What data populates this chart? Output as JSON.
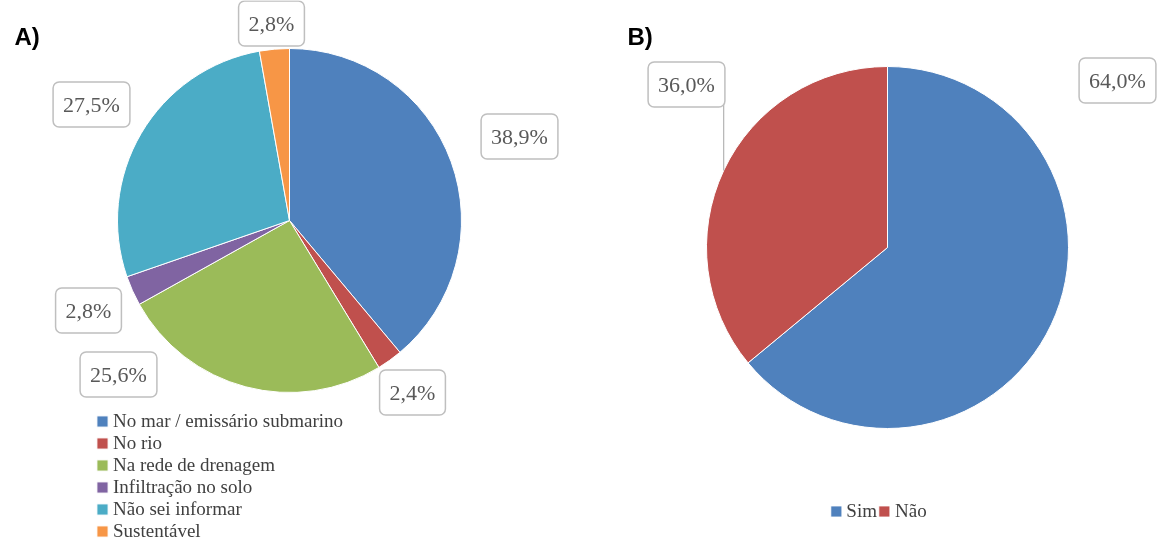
{
  "chart_data": [
    {
      "type": "pie",
      "title": "A)",
      "categories": [
        "No mar / emissário submarino",
        "No rio",
        "Na rede de drenagem",
        "Infiltração no solo",
        "Não sei informar",
        "Sustentável"
      ],
      "values": [
        38.9,
        2.4,
        25.6,
        2.8,
        27.5,
        2.8
      ],
      "colors": [
        "#4f81bd",
        "#c0504d",
        "#9bbb59",
        "#8064a2",
        "#4bacc6",
        "#f79646"
      ],
      "value_labels": [
        "38,9%",
        "2,4%",
        "25,6%",
        "2,8%",
        "27,5%",
        "2,8%"
      ],
      "legend": "bottom"
    },
    {
      "type": "pie",
      "title": "B)",
      "categories": [
        "Sim",
        "Não"
      ],
      "values": [
        64.0,
        36.0
      ],
      "colors": [
        "#4f81bd",
        "#c0504d"
      ],
      "value_labels": [
        "64,0%",
        "36,0%"
      ],
      "legend": "bottom"
    }
  ]
}
